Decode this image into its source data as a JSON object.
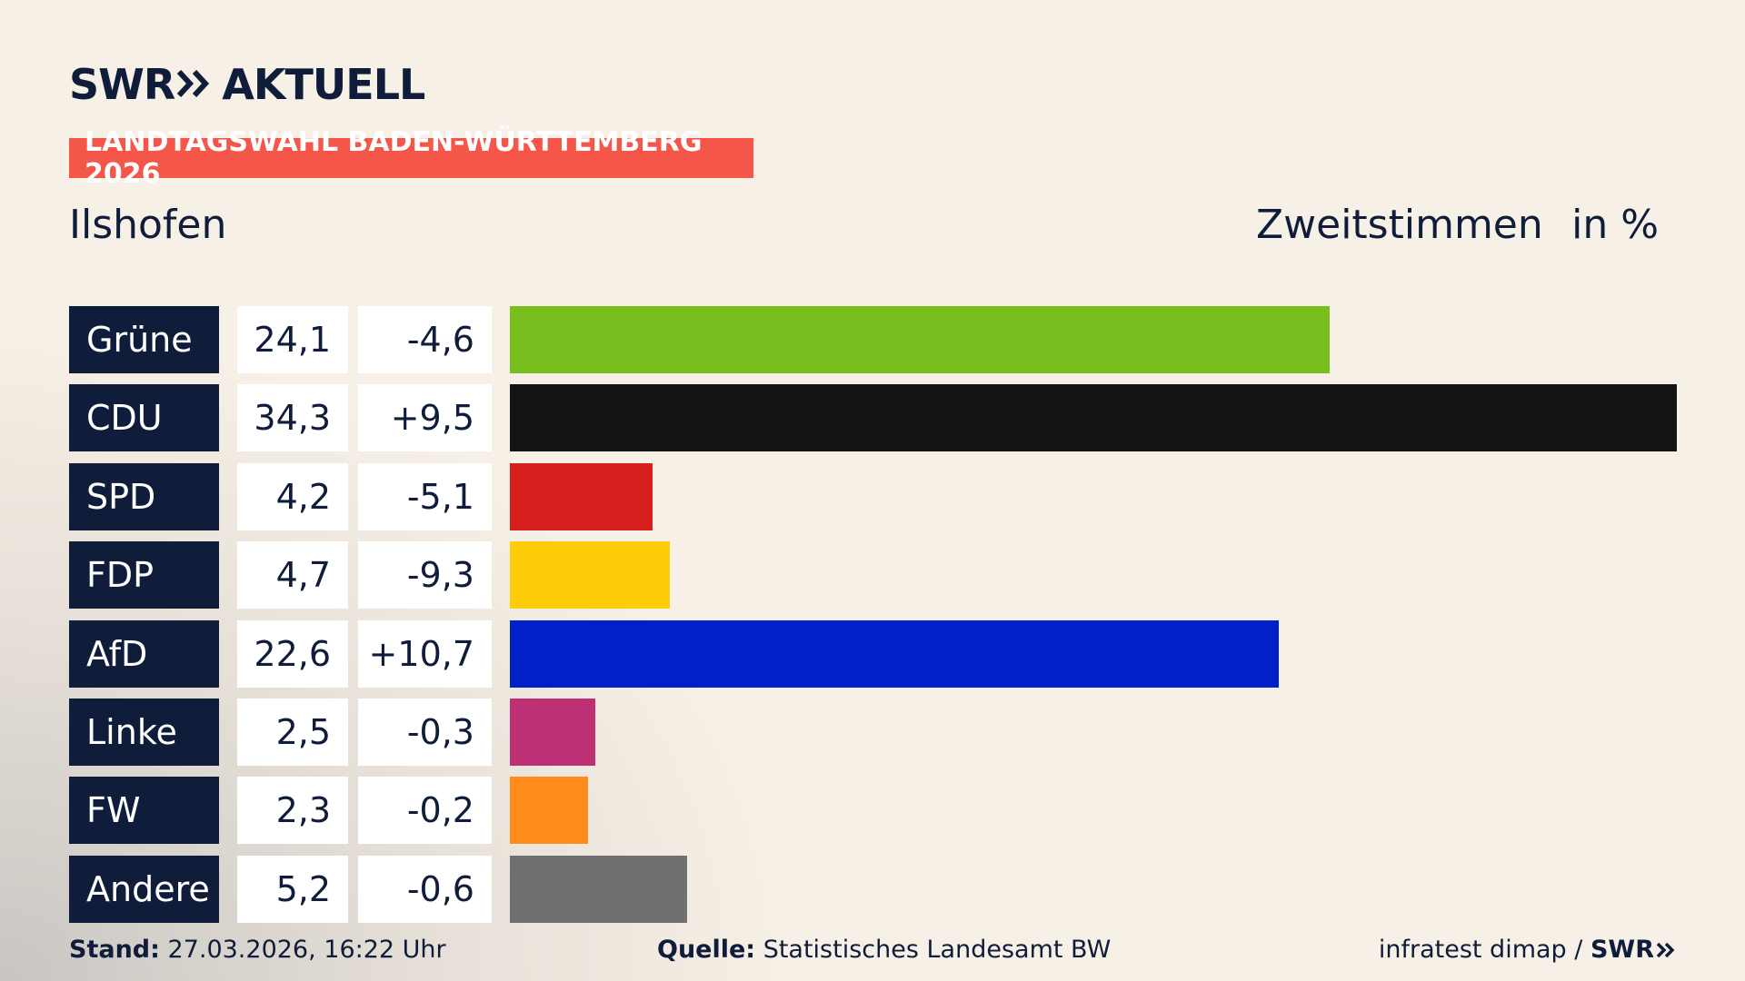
{
  "chart_data": {
    "type": "bar",
    "orientation": "horizontal",
    "brand": "SWR",
    "brand_suffix": "AKTUELL",
    "banner": "LANDTAGSWAHL BADEN-WÜRTTEMBERG 2026",
    "title": "Ilshofen",
    "subtitle": "Zweitstimmen",
    "unit": "in %",
    "categories": [
      "Grüne",
      "CDU",
      "SPD",
      "FDP",
      "AfD",
      "Linke",
      "FW",
      "Andere"
    ],
    "values": [
      24.1,
      34.3,
      4.2,
      4.7,
      22.6,
      2.5,
      2.3,
      5.2
    ],
    "value_labels": [
      "24,1",
      "34,3",
      "4,2",
      "4,7",
      "22,6",
      "2,5",
      "2,3",
      "5,2"
    ],
    "changes": [
      -4.6,
      9.5,
      -5.1,
      -9.3,
      10.7,
      -0.3,
      -0.2,
      -0.6
    ],
    "change_labels": [
      "-4,6",
      "+9,5",
      "-5,1",
      "-9,3",
      "+10,7",
      "-0,3",
      "-0,2",
      "-0,6"
    ],
    "colors": [
      "#78be1e",
      "#141414",
      "#d7201e",
      "#ffcc0a",
      "#0021c8",
      "#be3075",
      "#ff8c1a",
      "#707070"
    ],
    "footer": {
      "stand_label": "Stand:",
      "stand": "27.03.2026, 16:22 Uhr",
      "source_label": "Quelle:",
      "source": "Statistisches Landesamt BW",
      "credit": "infratest dimap /",
      "credit_brand": "SWR"
    }
  }
}
